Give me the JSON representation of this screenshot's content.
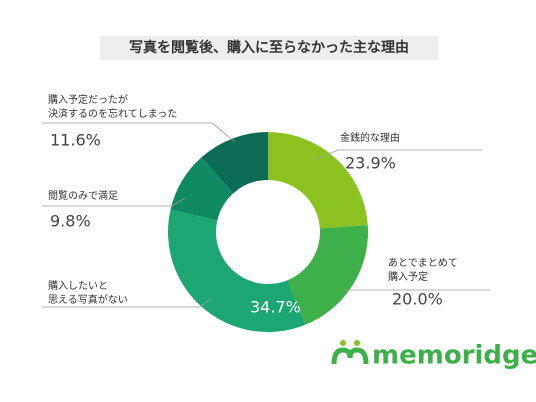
{
  "chart_data": {
    "type": "donut",
    "title": "写真を閲覧後、購入に至らなかった主な理由",
    "categories": [
      [
        "金銭的な理由"
      ],
      [
        "あとでまとめて",
        "購入予定"
      ],
      [
        "購入したいと",
        "思える写真がない"
      ],
      [
        "閲覧のみで満足"
      ],
      [
        "購入予定だったが",
        "決済するのを忘れてしまった"
      ]
    ],
    "values": [
      23.9,
      20.0,
      34.7,
      9.8,
      11.6
    ],
    "value_labels": [
      "23.9%",
      "20.0%",
      "34.7%",
      "9.8%",
      "11.6%"
    ],
    "colors": [
      "#8cc21f",
      "#3db049",
      "#1ba674",
      "#0f8a62",
      "#0b6b53"
    ],
    "logo": "memoridge"
  }
}
